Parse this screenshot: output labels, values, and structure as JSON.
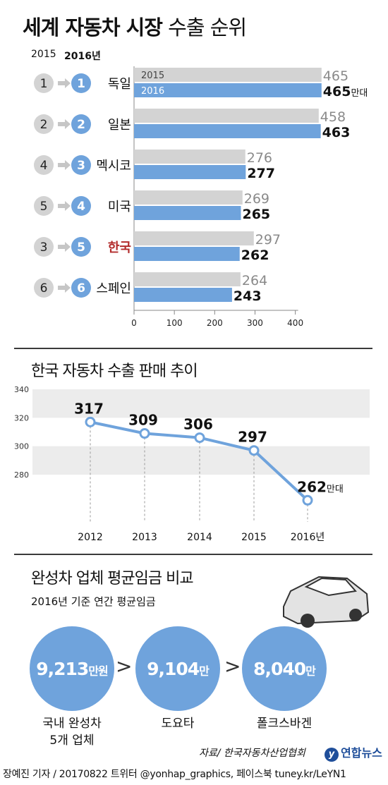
{
  "title": {
    "bold": "세계 자동차 시장",
    "light": "수출 순위"
  },
  "chart_data": [
    {
      "type": "bar",
      "title": "세계 자동차 시장 수출 순위",
      "rank_headers": [
        "2015",
        "2016년"
      ],
      "series": [
        {
          "name": "2015"
        },
        {
          "name": "2016"
        }
      ],
      "unit_suffix": "만대",
      "categories": [
        {
          "country": "독일",
          "rank_2015": "1",
          "rank_2016": "1",
          "v2015": 465,
          "v2016": 465,
          "highlight": false
        },
        {
          "country": "일본",
          "rank_2015": "2",
          "rank_2016": "2",
          "v2015": 458,
          "v2016": 463,
          "highlight": false
        },
        {
          "country": "멕시코",
          "rank_2015": "4",
          "rank_2016": "3",
          "v2015": 276,
          "v2016": 277,
          "highlight": false
        },
        {
          "country": "미국",
          "rank_2015": "5",
          "rank_2016": "4",
          "v2015": 269,
          "v2016": 265,
          "highlight": false
        },
        {
          "country": "한국",
          "rank_2015": "3",
          "rank_2016": "5",
          "v2015": 297,
          "v2016": 262,
          "highlight": true
        },
        {
          "country": "스페인",
          "rank_2015": "6",
          "rank_2016": "6",
          "v2015": 264,
          "v2016": 243,
          "highlight": false
        }
      ],
      "xticks": [
        0,
        100,
        200,
        300,
        400
      ],
      "xlim": [
        0,
        400
      ]
    },
    {
      "type": "line",
      "title": "한국 자동차 수출 판매 추이",
      "x": [
        "2012",
        "2013",
        "2014",
        "2015",
        "2016년"
      ],
      "values": [
        317,
        309,
        306,
        297,
        262
      ],
      "unit_suffix": "만대",
      "yticks": [
        280,
        300,
        320,
        340
      ],
      "ylim": [
        265,
        345
      ]
    },
    {
      "type": "bar",
      "title": "완성차 업체 평균임금 비교",
      "subtitle": "2016년 기준 연간 평균임금",
      "items": [
        {
          "value": "9,213",
          "unit": "만원",
          "label": [
            "국내 완성차",
            "5개 업체"
          ]
        },
        {
          "value": "9,104",
          "unit": "만",
          "label": [
            "도요타"
          ]
        },
        {
          "value": "8,040",
          "unit": "만",
          "label": [
            "폴크스바겐"
          ]
        }
      ],
      "comparator": ">"
    }
  ],
  "source": "자료/ 한국자동차산업협회",
  "logo": "연합뉴스",
  "footer": "장예진 기자 / 20170822 트위터 @yonhap_graphics, 페이스북 tuney.kr/LeYN1",
  "colors": {
    "bar2015": "#d3d3d3",
    "bar2016": "#6fa3dc",
    "highlight": "#b22b2b",
    "badge_grey": "#d3d3d3",
    "line": "#6fa3dc",
    "band": "#ececec"
  }
}
